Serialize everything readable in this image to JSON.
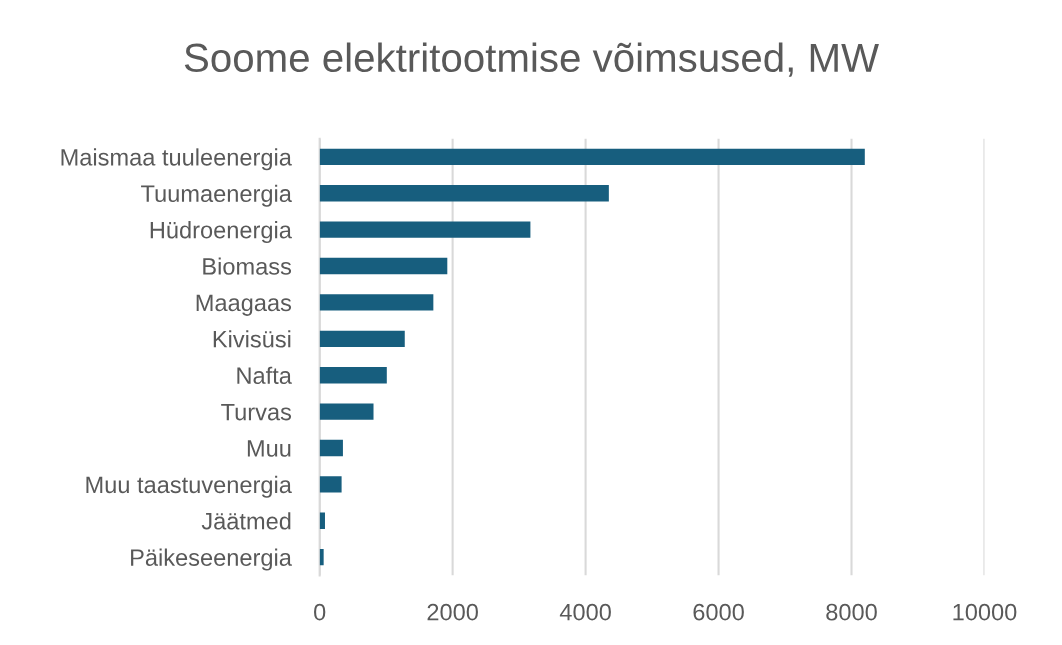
{
  "chart_data": {
    "type": "bar",
    "orientation": "horizontal",
    "title": "Soome elektritootmise võimsused, MW",
    "categories": [
      "Maismaa tuuleenergia",
      "Tuumaenergia",
      "Hüdroenergia",
      "Biomass",
      "Maagaas",
      "Kivisüsi",
      "Nafta",
      "Turvas",
      "Muu",
      "Muu taastuvenergia",
      "Jäätmed",
      "Päikeseenergia"
    ],
    "values": [
      8200,
      4350,
      3170,
      1920,
      1710,
      1280,
      1010,
      810,
      350,
      330,
      80,
      60
    ],
    "color": "#175e7e",
    "xlim": [
      0,
      10000
    ],
    "xticks": [
      0,
      2000,
      4000,
      6000,
      8000,
      10000
    ],
    "grid": "x"
  }
}
